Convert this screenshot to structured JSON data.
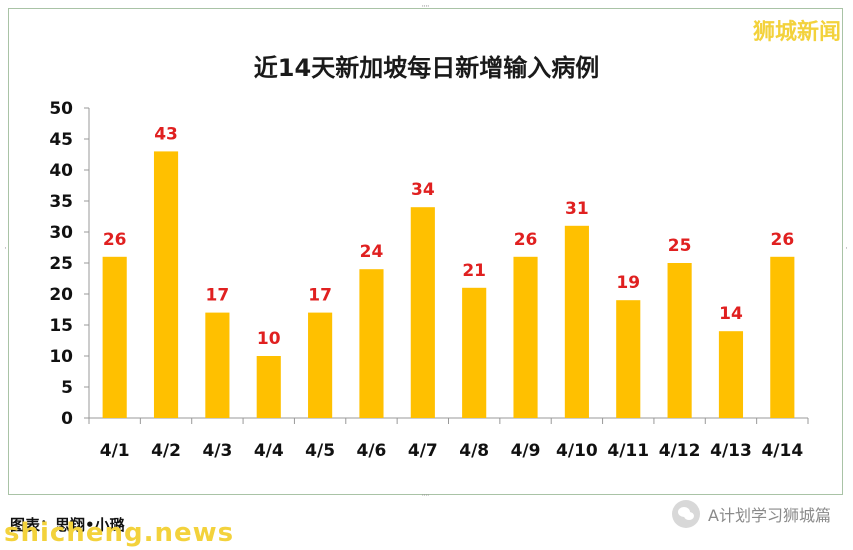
{
  "watermark_top": "狮城新闻",
  "chart_data": {
    "type": "bar",
    "title": "近14天新加坡每日新增输入病例",
    "categories": [
      "4/1",
      "4/2",
      "4/3",
      "4/4",
      "4/5",
      "4/6",
      "4/7",
      "4/8",
      "4/9",
      "4/10",
      "4/11",
      "4/12",
      "4/13",
      "4/14"
    ],
    "values": [
      26,
      43,
      17,
      10,
      17,
      24,
      34,
      21,
      26,
      31,
      19,
      25,
      14,
      26
    ],
    "xlabel": "",
    "ylabel": "",
    "ylim": [
      0,
      50
    ],
    "yticks": [
      0,
      5,
      10,
      15,
      20,
      25,
      30,
      35,
      40,
      45,
      50
    ],
    "grid": false,
    "legend": "none",
    "bar_color": "#ffc000",
    "label_color": "#e02020"
  },
  "footer": {
    "credit": "图表：思翔•小璐",
    "brand": "shicheng.news",
    "account": "A计划学习狮城篇",
    "account_icon": "wechat-icon"
  }
}
